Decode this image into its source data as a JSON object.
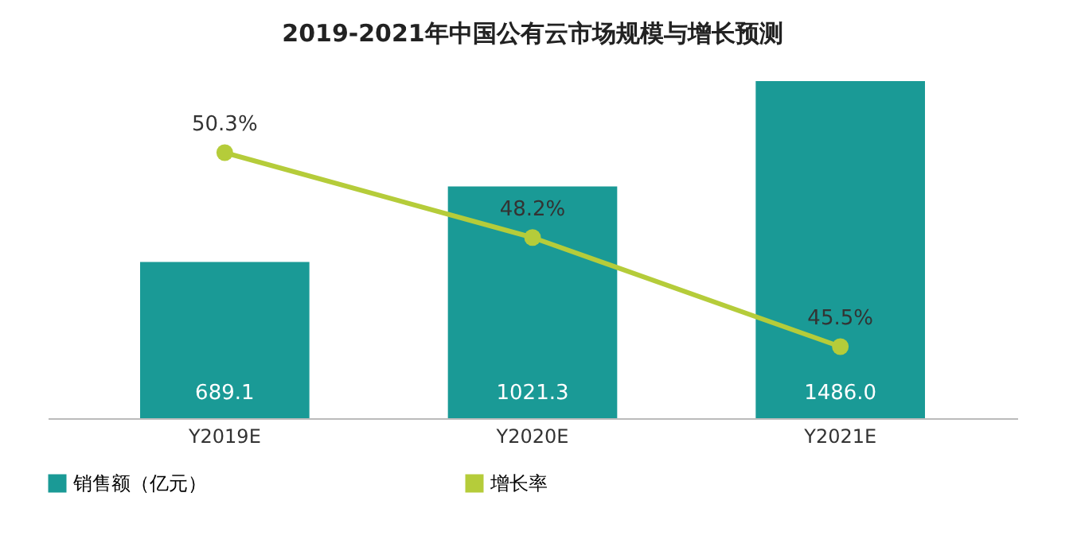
{
  "chart_data": {
    "type": "bar",
    "title": "2019-2021年中国公有云市场规模与增长预测",
    "categories": [
      "Y2019E",
      "Y2020E",
      "Y2021E"
    ],
    "tick_labels": "x",
    "legend": "bottom",
    "marker": "circle",
    "series": [
      {
        "name": "销售额（亿元）",
        "color": "#1a9a96",
        "values": [
          689.1,
          1021.3,
          1486.0
        ],
        "value_labels": [
          "689.1",
          "1021.3",
          "1486.0"
        ]
      },
      {
        "name": "增长率",
        "type": "line",
        "axis": "y2",
        "color": "#b5cc3a",
        "values": [
          50.3,
          48.2,
          45.5
        ],
        "value_labels": [
          "50.3%",
          "48.2%",
          "45.5%"
        ]
      }
    ]
  }
}
